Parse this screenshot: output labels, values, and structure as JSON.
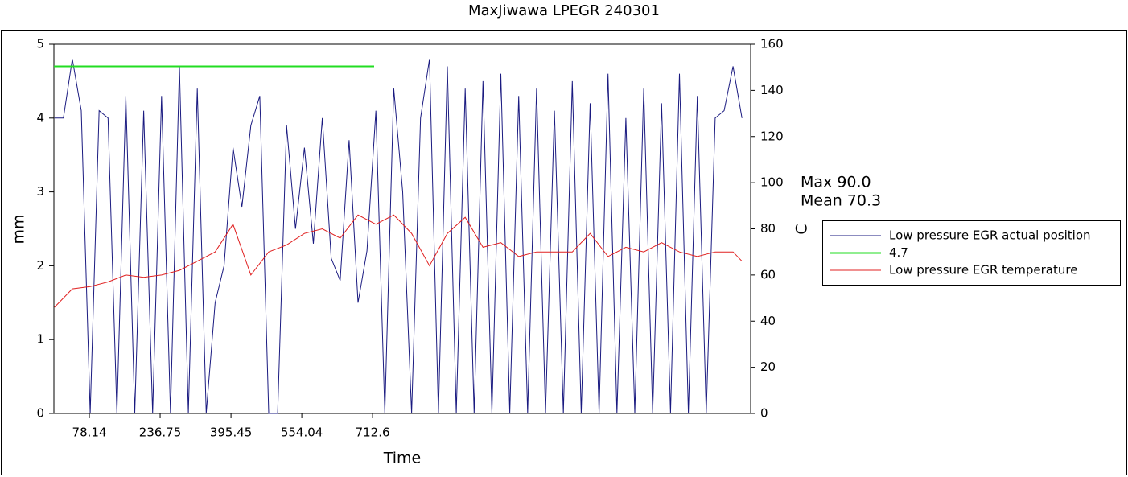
{
  "chart_data": {
    "type": "line",
    "title": "MaxJiwawa   LPEGR 240301",
    "xlabel": "Time",
    "ylabel": "mm",
    "y2label": "C",
    "annotations": [
      "Max  90.0",
      "Mean  70.3"
    ],
    "xlim": [
      -1.2,
      1559.5
    ],
    "xticks": [
      78.14,
      236.75,
      395.45,
      554.04,
      712.6
    ],
    "ylim": [
      0,
      5
    ],
    "yticks": [
      0,
      1,
      2,
      3,
      4,
      5
    ],
    "y2lim": [
      0,
      160
    ],
    "y2ticks": [
      0,
      20,
      40,
      60,
      80,
      100,
      120,
      140,
      160
    ],
    "legend": "right",
    "series": [
      {
        "name": "Low pressure EGR actual position",
        "color": "#1a1a80",
        "x": [
          0,
          20,
          40,
          60,
          80,
          100,
          120,
          140,
          160,
          180,
          200,
          220,
          240,
          260,
          280,
          300,
          320,
          340,
          360,
          380,
          400,
          420,
          440,
          460,
          480,
          500,
          520,
          540,
          560,
          580,
          600,
          620,
          640,
          660,
          680,
          700,
          720,
          740,
          760,
          780,
          800,
          820,
          840,
          860,
          880,
          900,
          920,
          940,
          960,
          980,
          1000,
          1020,
          1040,
          1060,
          1080,
          1100,
          1120,
          1140,
          1160,
          1180,
          1200,
          1220,
          1240,
          1260,
          1280,
          1300,
          1320,
          1340,
          1360,
          1380,
          1400,
          1420,
          1440,
          1460,
          1480,
          1500,
          1520,
          1540
        ],
        "values": [
          4.0,
          4.0,
          4.8,
          4.1,
          0,
          4.1,
          4.0,
          0,
          4.3,
          0,
          4.1,
          0,
          4.3,
          0,
          4.7,
          0,
          4.4,
          0,
          1.5,
          2.0,
          3.6,
          2.8,
          3.9,
          4.3,
          0,
          0,
          3.9,
          2.5,
          3.6,
          2.3,
          4.0,
          2.1,
          1.8,
          3.7,
          1.5,
          2.2,
          4.1,
          0,
          4.4,
          3.0,
          0,
          4.0,
          4.8,
          0,
          4.7,
          0,
          4.4,
          0,
          4.5,
          0,
          4.6,
          0,
          4.3,
          0,
          4.4,
          0,
          4.1,
          0,
          4.5,
          0,
          4.2,
          0,
          4.6,
          0,
          4.0,
          0,
          4.4,
          0,
          4.2,
          0,
          4.6,
          0,
          4.3,
          0,
          4.0,
          4.1,
          4.7,
          4.0
        ]
      },
      {
        "name": "4.7",
        "color": "#22dd22",
        "x": [
          -1.2,
          716
        ],
        "values": [
          4.7,
          4.7
        ]
      },
      {
        "name": "Low pressure EGR temperature",
        "color": "#e02020",
        "axis": "y2",
        "x": [
          0,
          40,
          80,
          120,
          160,
          200,
          240,
          280,
          320,
          360,
          400,
          440,
          480,
          520,
          560,
          600,
          640,
          680,
          720,
          760,
          800,
          840,
          880,
          920,
          960,
          1000,
          1040,
          1080,
          1120,
          1160,
          1200,
          1240,
          1280,
          1320,
          1360,
          1400,
          1440,
          1480,
          1520,
          1540
        ],
        "values": [
          46,
          54,
          55,
          57,
          60,
          59,
          60,
          62,
          66,
          70,
          82,
          60,
          70,
          73,
          78,
          80,
          76,
          86,
          82,
          86,
          78,
          64,
          78,
          85,
          72,
          74,
          68,
          70,
          70,
          70,
          78,
          68,
          72,
          70,
          74,
          70,
          68,
          70,
          70,
          66
        ]
      }
    ]
  }
}
